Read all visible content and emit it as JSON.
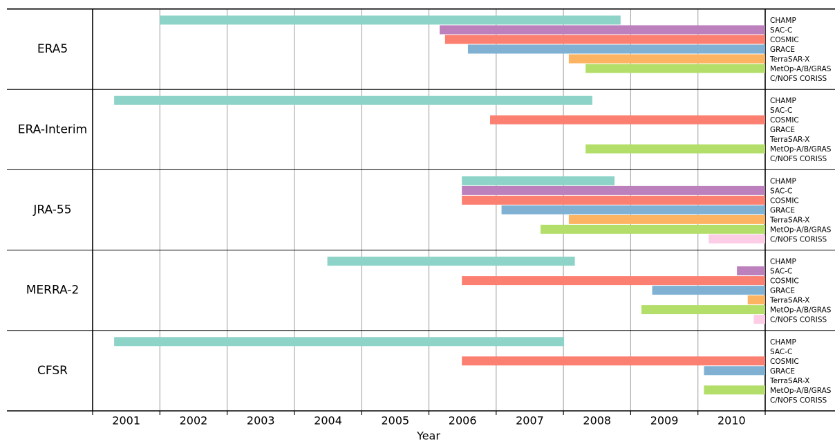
{
  "chart_data": {
    "type": "range-bar",
    "xlabel": "Year",
    "xlim": [
      2001,
      2011
    ],
    "xticks": [
      {
        "value": 2001.5,
        "label": "2001"
      },
      {
        "value": 2002.5,
        "label": "2002"
      },
      {
        "value": 2003.5,
        "label": "2003"
      },
      {
        "value": 2004.5,
        "label": "2004"
      },
      {
        "value": 2005.5,
        "label": "2005"
      },
      {
        "value": 2006.5,
        "label": "2006"
      },
      {
        "value": 2007.5,
        "label": "2007"
      },
      {
        "value": 2008.5,
        "label": "2008"
      },
      {
        "value": 2009.5,
        "label": "2009"
      },
      {
        "value": 2010.5,
        "label": "2010"
      }
    ],
    "xgrid": [
      2001,
      2002,
      2003,
      2004,
      2005,
      2006,
      2007,
      2008,
      2009,
      2010,
      2011
    ],
    "categories": [
      "ERA5",
      "ERA-Interim",
      "JRA-55",
      "MERRA-2",
      "CFSR"
    ],
    "series": [
      {
        "name": "CHAMP",
        "color": "#8dd3c7",
        "values": [
          [
            2002.0,
            2008.85
          ],
          [
            2001.32,
            2008.43
          ],
          [
            2006.49,
            2008.76
          ],
          [
            2004.49,
            2008.17
          ],
          [
            2001.32,
            2008.01
          ]
        ]
      },
      {
        "name": "SAC-C",
        "color": "#bc80bd",
        "values": [
          [
            2006.16,
            2011
          ],
          null,
          [
            2006.49,
            2011
          ],
          [
            2010.58,
            2011
          ],
          null
        ]
      },
      {
        "name": "COSMIC",
        "color": "#fb8072",
        "values": [
          [
            2006.24,
            2011
          ],
          [
            2006.91,
            2011
          ],
          [
            2006.49,
            2011
          ],
          [
            2006.49,
            2011
          ],
          [
            2006.49,
            2011
          ]
        ]
      },
      {
        "name": "GRACE",
        "color": "#80b1d3",
        "values": [
          [
            2006.58,
            2011
          ],
          null,
          [
            2007.08,
            2011
          ],
          [
            2009.32,
            2011
          ],
          [
            2010.09,
            2011
          ]
        ]
      },
      {
        "name": "TerraSAR-X",
        "color": "#fdb462",
        "values": [
          [
            2008.08,
            2011
          ],
          null,
          [
            2008.08,
            2011
          ],
          [
            2010.74,
            2011
          ],
          null
        ]
      },
      {
        "name": "MetOp-A/B/GRAS",
        "color": "#b3de69",
        "values": [
          [
            2008.33,
            2011
          ],
          [
            2008.33,
            2011
          ],
          [
            2007.66,
            2011
          ],
          [
            2009.16,
            2011
          ],
          [
            2010.09,
            2011
          ]
        ]
      },
      {
        "name": "C/NOFS CORISS",
        "color": "#fccde5",
        "values": [
          null,
          null,
          [
            2010.16,
            2011
          ],
          [
            2010.83,
            2011
          ],
          null
        ]
      }
    ]
  }
}
